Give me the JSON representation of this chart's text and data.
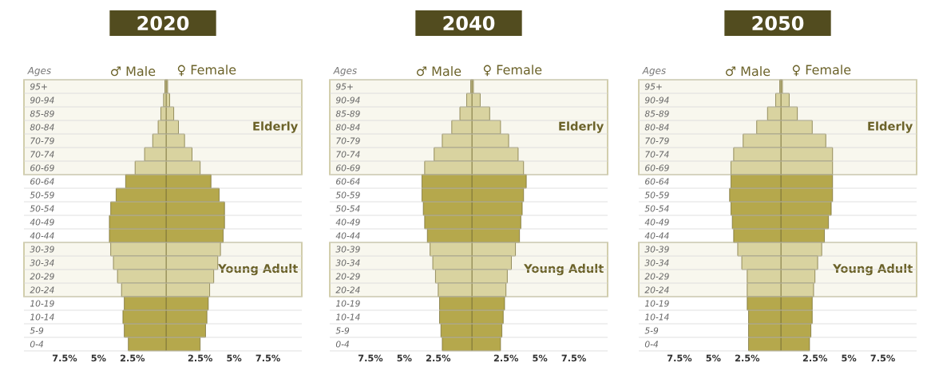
{
  "chart_data": [
    {
      "type": "bar",
      "orientation": "horizontal",
      "title": "2020",
      "ylabel": "Ages",
      "grid": "y",
      "legend": "top",
      "categories": [
        "95+",
        "90-94",
        "85-89",
        "80-84",
        "70-79",
        "70-74",
        "60-69",
        "60-64",
        "50-59",
        "50-54",
        "40-49",
        "40-44",
        "30-39",
        "30-34",
        "20-29",
        "20-24",
        "10-19",
        "10-14",
        "5-9",
        "0-4"
      ],
      "xlim": [
        -10.5,
        10
      ],
      "xticks": [
        {
          "value": -7.5,
          "label": "7.5%"
        },
        {
          "value": -5,
          "label": "5%"
        },
        {
          "value": -2.5,
          "label": "2.5%"
        },
        {
          "value": 2.5,
          "label": "2.5%"
        },
        {
          "value": 5,
          "label": "5%"
        },
        {
          "value": 7.5,
          "label": "7.5%"
        }
      ],
      "stacked": true,
      "bands": [
        {
          "axis": "y",
          "from": "95+",
          "to": "60-69",
          "label": "Elderly",
          "color": "#c8c39a"
        },
        {
          "axis": "y",
          "from": "30-39",
          "to": "20-24",
          "label": "Young Adult",
          "color": "#c8c39a"
        }
      ],
      "series": [
        {
          "name": "♂ Male",
          "color": "#6b6229",
          "values": [
            -0.1,
            -0.2,
            -0.4,
            -0.6,
            -1.0,
            -1.6,
            -2.3,
            -3.0,
            -3.7,
            -4.1,
            -4.2,
            -4.2,
            -4.1,
            -3.9,
            -3.6,
            -3.3,
            -3.1,
            -3.2,
            -3.1,
            -2.8
          ],
          "colors": [
            "#d9d3a0",
            "#d9d3a0",
            "#d9d3a0",
            "#d9d3a0",
            "#d9d3a0",
            "#d9d3a0",
            "#d9d3a0",
            "#b5a84c",
            "#b5a84c",
            "#b5a84c",
            "#b5a84c",
            "#b5a84c",
            "#d9d3a0",
            "#d9d3a0",
            "#d9d3a0",
            "#d9d3a0",
            "#b5a84c",
            "#b5a84c",
            "#b5a84c",
            "#b5a84c"
          ]
        },
        {
          "name": "♀ Female",
          "color": "#6b6229",
          "values": [
            0.1,
            0.25,
            0.55,
            0.9,
            1.35,
            1.9,
            2.5,
            3.3,
            3.9,
            4.3,
            4.3,
            4.2,
            4.0,
            3.8,
            3.5,
            3.2,
            3.1,
            3.0,
            2.9,
            2.5
          ],
          "colors": [
            "#d9d3a0",
            "#d9d3a0",
            "#d9d3a0",
            "#d9d3a0",
            "#d9d3a0",
            "#d9d3a0",
            "#d9d3a0",
            "#b5a84c",
            "#b5a84c",
            "#b5a84c",
            "#b5a84c",
            "#b5a84c",
            "#d9d3a0",
            "#d9d3a0",
            "#d9d3a0",
            "#d9d3a0",
            "#b5a84c",
            "#b5a84c",
            "#b5a84c",
            "#b5a84c"
          ]
        }
      ]
    },
    {
      "type": "bar",
      "orientation": "horizontal",
      "title": "2040",
      "ylabel": "Ages",
      "grid": "y",
      "legend": "top",
      "categories": [
        "95+",
        "90-94",
        "85-89",
        "80-84",
        "70-79",
        "70-74",
        "60-69",
        "60-64",
        "50-59",
        "50-54",
        "40-49",
        "40-44",
        "30-39",
        "30-34",
        "20-29",
        "20-24",
        "10-19",
        "10-14",
        "5-9",
        "0-4"
      ],
      "xlim": [
        -10.5,
        10
      ],
      "xticks": [
        {
          "value": -7.5,
          "label": "7.5%"
        },
        {
          "value": -5,
          "label": "5%"
        },
        {
          "value": -2.5,
          "label": "2.5%"
        },
        {
          "value": 2.5,
          "label": "2.5%"
        },
        {
          "value": 5,
          "label": "5%"
        },
        {
          "value": 7.5,
          "label": "7.5%"
        }
      ],
      "stacked": true,
      "bands": [
        {
          "axis": "y",
          "from": "95+",
          "to": "60-69",
          "label": "Elderly",
          "color": "#c8c39a"
        },
        {
          "axis": "y",
          "from": "30-39",
          "to": "20-24",
          "label": "Young Adult",
          "color": "#c8c39a"
        }
      ],
      "series": [
        {
          "name": "♂ Male",
          "color": "#6b6229",
          "values": [
            -0.1,
            -0.4,
            -0.9,
            -1.5,
            -2.2,
            -2.8,
            -3.5,
            -3.7,
            -3.7,
            -3.6,
            -3.5,
            -3.3,
            -3.1,
            -2.9,
            -2.7,
            -2.5,
            -2.4,
            -2.4,
            -2.3,
            -2.2
          ],
          "colors": [
            "#d9d3a0",
            "#d9d3a0",
            "#d9d3a0",
            "#d9d3a0",
            "#d9d3a0",
            "#d9d3a0",
            "#d9d3a0",
            "#b5a84c",
            "#b5a84c",
            "#b5a84c",
            "#b5a84c",
            "#b5a84c",
            "#d9d3a0",
            "#d9d3a0",
            "#d9d3a0",
            "#d9d3a0",
            "#b5a84c",
            "#b5a84c",
            "#b5a84c",
            "#b5a84c"
          ]
        },
        {
          "name": "♀ Female",
          "color": "#6b6229",
          "values": [
            0.1,
            0.6,
            1.3,
            2.1,
            2.7,
            3.4,
            3.8,
            4.0,
            3.8,
            3.7,
            3.6,
            3.5,
            3.2,
            2.9,
            2.6,
            2.5,
            2.4,
            2.3,
            2.2,
            2.1
          ],
          "colors": [
            "#d9d3a0",
            "#d9d3a0",
            "#d9d3a0",
            "#d9d3a0",
            "#d9d3a0",
            "#d9d3a0",
            "#d9d3a0",
            "#b5a84c",
            "#b5a84c",
            "#b5a84c",
            "#b5a84c",
            "#b5a84c",
            "#d9d3a0",
            "#d9d3a0",
            "#d9d3a0",
            "#d9d3a0",
            "#b5a84c",
            "#b5a84c",
            "#b5a84c",
            "#b5a84c"
          ]
        }
      ]
    },
    {
      "type": "bar",
      "orientation": "horizontal",
      "title": "2050",
      "ylabel": "Ages",
      "grid": "y",
      "legend": "top",
      "categories": [
        "95+",
        "90-94",
        "85-89",
        "80-84",
        "70-79",
        "70-74",
        "60-69",
        "60-64",
        "50-59",
        "50-54",
        "40-49",
        "40-44",
        "30-39",
        "30-34",
        "20-29",
        "20-24",
        "10-19",
        "10-14",
        "5-9",
        "0-4"
      ],
      "xlim": [
        -10.5,
        10
      ],
      "xticks": [
        {
          "value": -7.5,
          "label": "7.5%"
        },
        {
          "value": -5,
          "label": "5%"
        },
        {
          "value": -2.5,
          "label": "2.5%"
        },
        {
          "value": 2.5,
          "label": "2.5%"
        },
        {
          "value": 5,
          "label": "5%"
        },
        {
          "value": 7.5,
          "label": "7.5%"
        }
      ],
      "stacked": true,
      "bands": [
        {
          "axis": "y",
          "from": "95+",
          "to": "60-69",
          "label": "Elderly",
          "color": "#c8c39a"
        },
        {
          "axis": "y",
          "from": "30-39",
          "to": "20-24",
          "label": "Young Adult",
          "color": "#c8c39a"
        }
      ],
      "series": [
        {
          "name": "♂ Male",
          "color": "#6b6229",
          "values": [
            -0.1,
            -0.4,
            -1.0,
            -1.8,
            -2.8,
            -3.5,
            -3.7,
            -3.7,
            -3.8,
            -3.7,
            -3.6,
            -3.5,
            -3.2,
            -2.9,
            -2.5,
            -2.5,
            -2.5,
            -2.4,
            -2.4,
            -2.4
          ],
          "colors": [
            "#d9d3a0",
            "#d9d3a0",
            "#d9d3a0",
            "#d9d3a0",
            "#d9d3a0",
            "#d9d3a0",
            "#d9d3a0",
            "#b5a84c",
            "#b5a84c",
            "#b5a84c",
            "#b5a84c",
            "#b5a84c",
            "#d9d3a0",
            "#d9d3a0",
            "#d9d3a0",
            "#d9d3a0",
            "#b5a84c",
            "#b5a84c",
            "#b5a84c",
            "#b5a84c"
          ]
        },
        {
          "name": "♀ Female",
          "color": "#6b6229",
          "values": [
            0.1,
            0.6,
            1.2,
            2.3,
            3.3,
            3.8,
            3.8,
            3.8,
            3.8,
            3.7,
            3.5,
            3.2,
            3.0,
            2.7,
            2.5,
            2.4,
            2.3,
            2.3,
            2.2,
            2.1
          ],
          "colors": [
            "#d9d3a0",
            "#d9d3a0",
            "#d9d3a0",
            "#d9d3a0",
            "#d9d3a0",
            "#d9d3a0",
            "#d9d3a0",
            "#b5a84c",
            "#b5a84c",
            "#b5a84c",
            "#b5a84c",
            "#b5a84c",
            "#d9d3a0",
            "#d9d3a0",
            "#d9d3a0",
            "#d9d3a0",
            "#b5a84c",
            "#b5a84c",
            "#b5a84c",
            "#b5a84c"
          ]
        }
      ]
    }
  ]
}
